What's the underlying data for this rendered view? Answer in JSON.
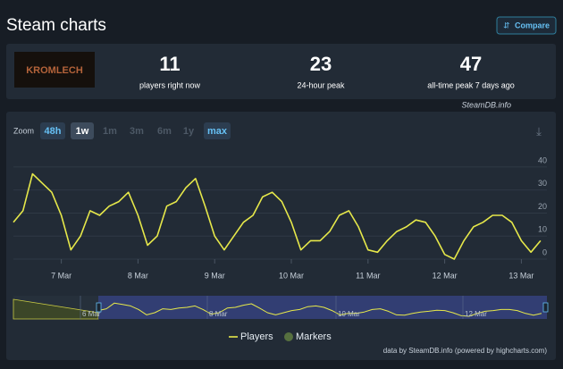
{
  "header": {
    "title": "Steam charts",
    "compare": "Compare"
  },
  "game_logo": "KROMLECH",
  "stats": [
    {
      "value": 11,
      "label": "players right now"
    },
    {
      "value": 23,
      "label": "24-hour peak"
    },
    {
      "value": 47,
      "label": "all-time peak 7 days ago"
    }
  ],
  "credit_top": "SteamDB.info",
  "zoom": {
    "label": "Zoom",
    "options": [
      "48h",
      "1w",
      "1m",
      "3m",
      "6m",
      "1y",
      "max"
    ]
  },
  "chart_data": {
    "type": "line",
    "x": [
      9,
      12,
      15,
      18,
      21,
      24,
      27,
      30,
      33,
      36,
      39,
      42,
      45,
      48,
      51,
      54,
      57,
      60,
      63,
      66,
      69,
      72,
      75,
      78,
      81,
      84,
      87,
      90,
      93,
      96,
      99,
      102,
      105,
      108,
      111,
      114,
      117,
      120,
      123,
      126,
      129,
      132,
      135,
      138,
      141,
      144,
      147,
      150,
      153,
      156,
      159,
      162,
      165,
      168,
      171,
      174
    ],
    "series": [
      {
        "name": "Players",
        "color": "#e6e84a",
        "values": [
          16,
          21,
          37,
          33,
          29,
          19,
          4,
          10,
          21,
          19,
          23,
          25,
          29,
          19,
          6,
          10,
          23,
          25,
          31,
          35,
          23,
          10,
          4,
          10,
          16,
          19,
          27,
          29,
          25,
          16,
          4,
          8,
          8,
          12,
          19,
          21,
          14,
          4,
          3,
          8,
          12,
          14,
          17,
          16,
          10,
          2,
          0,
          8,
          14,
          16,
          19,
          19,
          16,
          8,
          3,
          8
        ]
      }
    ],
    "xlim": [
      9,
      176
    ],
    "xticks": [
      {
        "value": 24,
        "label": "7 Mar"
      },
      {
        "value": 48,
        "label": "8 Mar"
      },
      {
        "value": 72,
        "label": "9 Mar"
      },
      {
        "value": 96,
        "label": "10 Mar"
      },
      {
        "value": 120,
        "label": "11 Mar"
      },
      {
        "value": 144,
        "label": "12 Mar"
      },
      {
        "value": 168,
        "label": "13 Mar"
      }
    ],
    "ylim": [
      0,
      45
    ],
    "yticks": [
      0,
      10,
      20,
      30,
      40
    ],
    "grid": true,
    "legend_extra": {
      "name": "Markers",
      "color": "#56703f"
    },
    "navigator_labels": [
      "6 Mar",
      "8 Mar",
      "10 Mar",
      "12 Mar"
    ]
  },
  "footer": "data by SteamDB.info (powered by highcharts.com)"
}
